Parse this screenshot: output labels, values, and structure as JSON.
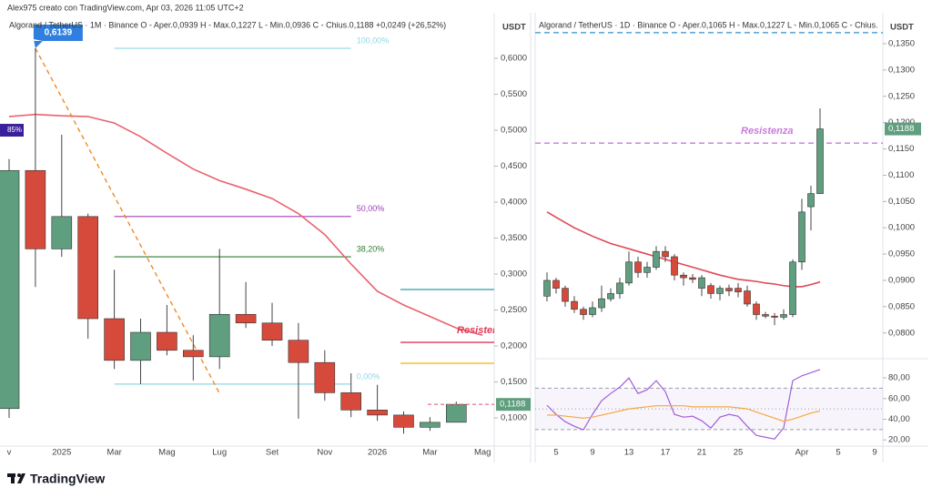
{
  "header": "Alex975 creato con TradingView.com, Apr 03, 2026 11:05 UTC+2",
  "brand": "TradingView",
  "chart_data": [
    {
      "type": "candlestick",
      "title": "Algorand / TetherUS · 1M · Binance   O - Aper.0,0939   H - Max.0,1227   L - Min.0,0936   C - Chius.0,1188   +0,0249 (+26,52%)",
      "y_axis_label": "USDT",
      "categories": [
        "v",
        null,
        "2025",
        null,
        "Mar",
        null,
        "Mag",
        null,
        "Lug",
        null,
        "Set",
        null,
        "Nov",
        null,
        "2026",
        null,
        "Mar",
        null,
        "Mag"
      ],
      "open": [
        0.113,
        0.444,
        0.335,
        0.38,
        0.238,
        0.18,
        0.219,
        0.194,
        0.185,
        0.244,
        0.232,
        0.208,
        0.177,
        0.135,
        0.111,
        0.104,
        0.087,
        0.0939,
        null
      ],
      "high": [
        0.46,
        0.6139,
        0.4937,
        0.384,
        0.306,
        0.238,
        0.257,
        0.215,
        0.335,
        0.289,
        0.26,
        0.232,
        0.194,
        0.162,
        0.146,
        0.109,
        0.101,
        0.1227,
        null
      ],
      "low": [
        0.1,
        0.282,
        0.324,
        0.21,
        0.168,
        0.147,
        0.187,
        0.152,
        0.168,
        0.225,
        0.2,
        0.099,
        0.124,
        0.101,
        0.096,
        0.078,
        0.082,
        0.0936,
        null
      ],
      "close": [
        0.444,
        0.335,
        0.38,
        0.238,
        0.18,
        0.219,
        0.194,
        0.185,
        0.244,
        0.232,
        0.208,
        0.177,
        0.135,
        0.111,
        0.104,
        0.087,
        0.0939,
        0.1188,
        null
      ],
      "up_color": "#5f9e7f",
      "down_color": "#d64a3c",
      "ma": {
        "color": "#e8636e",
        "values": [
          0.519,
          0.522,
          0.52,
          0.519,
          0.51,
          0.491,
          0.468,
          0.446,
          0.43,
          0.418,
          0.405,
          0.384,
          0.355,
          0.314,
          0.276,
          0.257,
          0.241,
          0.225,
          0.215
        ]
      },
      "ylim": [
        0.0608,
        0.6532
      ],
      "yticks": [
        {
          "value": 0.1,
          "label": "0,1000"
        },
        {
          "value": 0.15,
          "label": "0,1500"
        },
        {
          "value": 0.2,
          "label": "0,2000"
        },
        {
          "value": 0.25,
          "label": "0,2500"
        },
        {
          "value": 0.3,
          "label": "0,3000"
        },
        {
          "value": 0.35,
          "label": "0,3500"
        },
        {
          "value": 0.4,
          "label": "0,4000"
        },
        {
          "value": 0.45,
          "label": "0,4500"
        },
        {
          "value": 0.5,
          "label": "0,5000"
        },
        {
          "value": 0.55,
          "label": "0,5500"
        },
        {
          "value": 0.6,
          "label": "0,6000"
        }
      ],
      "fib": [
        {
          "label": "100,00%",
          "value": 0.6139,
          "color": "#8fd8e4"
        },
        {
          "label": "50,00%",
          "value": 0.38,
          "color": "#a040b8"
        },
        {
          "label": "38,20%",
          "value": 0.324,
          "color": "#2e7d32"
        },
        {
          "label": "0,00%",
          "value": 0.147,
          "color": "#8fd8e4"
        }
      ],
      "trendline": {
        "color": "#f08a24",
        "values": [
          0.6139,
          0.1342
        ]
      },
      "levels": [
        {
          "value": 0.2785,
          "color": "#2a9fb0"
        },
        {
          "value": 0.205,
          "color": "#e03a55",
          "label": "Resistenza"
        },
        {
          "value": 0.176,
          "color": "#f5b400"
        }
      ],
      "high_label": {
        "value": 0.6139,
        "label": "0,6139"
      },
      "side_badge": {
        "value": 0.5,
        "label": "85%"
      },
      "last_price": {
        "value": 0.1188,
        "label": "0,1188"
      }
    },
    {
      "type": "candlestick",
      "title": "Algorand / TetherUS · 1D · Binance   O - Aper.0,1065   H - Max.0,1227   L - Min.0,1065   C - Chius.",
      "y_axis_label": "USDT",
      "categories": [
        null,
        "5",
        null,
        null,
        null,
        "9",
        null,
        null,
        null,
        "13",
        null,
        null,
        null,
        "17",
        null,
        null,
        null,
        "21",
        null,
        null,
        null,
        "25",
        null,
        null,
        null,
        null,
        null,
        null,
        "Apr",
        null,
        null,
        null,
        "5",
        null,
        null,
        null,
        "9"
      ],
      "open": [
        0.087,
        0.09,
        0.0885,
        0.086,
        0.0845,
        0.0835,
        0.0848,
        0.0865,
        0.0875,
        0.0895,
        0.0935,
        0.0915,
        0.0925,
        0.0955,
        0.0945,
        0.091,
        0.0905,
        0.0885,
        0.089,
        0.0875,
        0.0885,
        0.0885,
        0.088,
        0.0855,
        0.0835,
        0.0832,
        0.083,
        0.0835,
        0.0935,
        0.104,
        0.1065,
        null,
        null,
        null,
        null,
        null,
        null
      ],
      "high": [
        0.0915,
        0.0905,
        0.089,
        0.087,
        0.085,
        0.086,
        0.089,
        0.0885,
        0.0905,
        0.0955,
        0.0945,
        0.0935,
        0.0965,
        0.0965,
        0.095,
        0.0915,
        0.0912,
        0.091,
        0.0895,
        0.089,
        0.0892,
        0.0895,
        0.089,
        0.086,
        0.084,
        0.0838,
        0.0845,
        0.094,
        0.1055,
        0.108,
        0.1227,
        null,
        null,
        null,
        null,
        null,
        null
      ],
      "low": [
        0.086,
        0.0875,
        0.085,
        0.0838,
        0.0825,
        0.083,
        0.084,
        0.086,
        0.0865,
        0.089,
        0.0905,
        0.0905,
        0.092,
        0.0935,
        0.09,
        0.089,
        0.0895,
        0.087,
        0.0865,
        0.0862,
        0.087,
        0.0868,
        0.085,
        0.0825,
        0.0828,
        0.0815,
        0.0825,
        0.083,
        0.092,
        0.0995,
        0.1065,
        null,
        null,
        null,
        null,
        null,
        null
      ],
      "close": [
        0.09,
        0.0885,
        0.086,
        0.0845,
        0.0835,
        0.0848,
        0.0865,
        0.0875,
        0.0895,
        0.0935,
        0.0915,
        0.0925,
        0.0955,
        0.0945,
        0.091,
        0.0905,
        0.0902,
        0.0905,
        0.0875,
        0.0885,
        0.088,
        0.0878,
        0.0855,
        0.0835,
        0.0832,
        0.083,
        0.0835,
        0.0935,
        0.103,
        0.1065,
        0.1188,
        null,
        null,
        null,
        null,
        null,
        null
      ],
      "up_color": "#5f9e7f",
      "down_color": "#d64a3c",
      "ma": {
        "color": "#e0485a",
        "values": [
          0.103,
          0.102,
          0.101,
          0.1,
          0.0992,
          0.0984,
          0.0977,
          0.097,
          0.0965,
          0.096,
          0.0955,
          0.095,
          0.0945,
          0.094,
          0.0935,
          0.093,
          0.0925,
          0.092,
          0.0915,
          0.091,
          0.0906,
          0.0902,
          0.09,
          0.0898,
          0.0895,
          0.0893,
          0.089,
          0.0888,
          0.0888,
          0.0892,
          0.0897,
          null,
          null,
          null,
          null,
          null,
          null
        ]
      },
      "ylim": [
        0.0758,
        0.1395
      ],
      "yticks": [
        {
          "value": 0.08,
          "label": "0,0800"
        },
        {
          "value": 0.085,
          "label": "0,0850"
        },
        {
          "value": 0.09,
          "label": "0,0900"
        },
        {
          "value": 0.095,
          "label": "0,0950"
        },
        {
          "value": 0.1,
          "label": "0,1000"
        },
        {
          "value": 0.105,
          "label": "0,1050"
        },
        {
          "value": 0.11,
          "label": "0,1100"
        },
        {
          "value": 0.115,
          "label": "0,1150"
        },
        {
          "value": 0.12,
          "label": "0,1200"
        },
        {
          "value": 0.125,
          "label": "0,1250"
        },
        {
          "value": 0.13,
          "label": "0,1300"
        },
        {
          "value": 0.135,
          "label": "0,1350"
        }
      ],
      "levels": [
        {
          "value": 0.1161,
          "color": "#c77bdc",
          "label": "Resistenza",
          "dashed": true
        },
        {
          "value": 0.1371,
          "color": "#2f8fd0",
          "dashed": true
        }
      ],
      "last_price": {
        "value": 0.1188,
        "label": "0,1188"
      },
      "rsi": {
        "ylim": [
          14,
          95
        ],
        "yticks": [
          {
            "value": 20,
            "label": "20,00"
          },
          {
            "value": 40,
            "label": "40,00"
          },
          {
            "value": 60,
            "label": "60,00"
          },
          {
            "value": 80,
            "label": "80,00"
          }
        ],
        "bands": [
          30,
          50,
          70
        ],
        "series": [
          {
            "color": "#a25fd8",
            "values": [
              53.5,
              44.7,
              37.6,
              33.2,
              29.7,
              44.7,
              57.9,
              64.9,
              71.1,
              79.9,
              64.9,
              68.5,
              77.3,
              66.7,
              44.7,
              42.0,
              42.9,
              38.5,
              31.5,
              42.0,
              44.7,
              42.9,
              33.2,
              24.4,
              22.6,
              20.9,
              31.5,
              77.3,
              82.0,
              85.0,
              88.0,
              null,
              null,
              null,
              null,
              null,
              null
            ]
          },
          {
            "color": "#f5a742",
            "values": [
              44,
              44,
              43,
              42,
              41,
              42,
              44,
              46,
              48,
              50,
              51,
              52,
              53,
              53,
              53,
              53,
              52,
              52,
              52,
              52,
              52,
              51,
              50,
              47,
              44,
              41,
              38,
              40,
              43,
              46,
              48,
              null,
              null,
              null,
              null,
              null,
              null
            ]
          }
        ]
      }
    }
  ]
}
